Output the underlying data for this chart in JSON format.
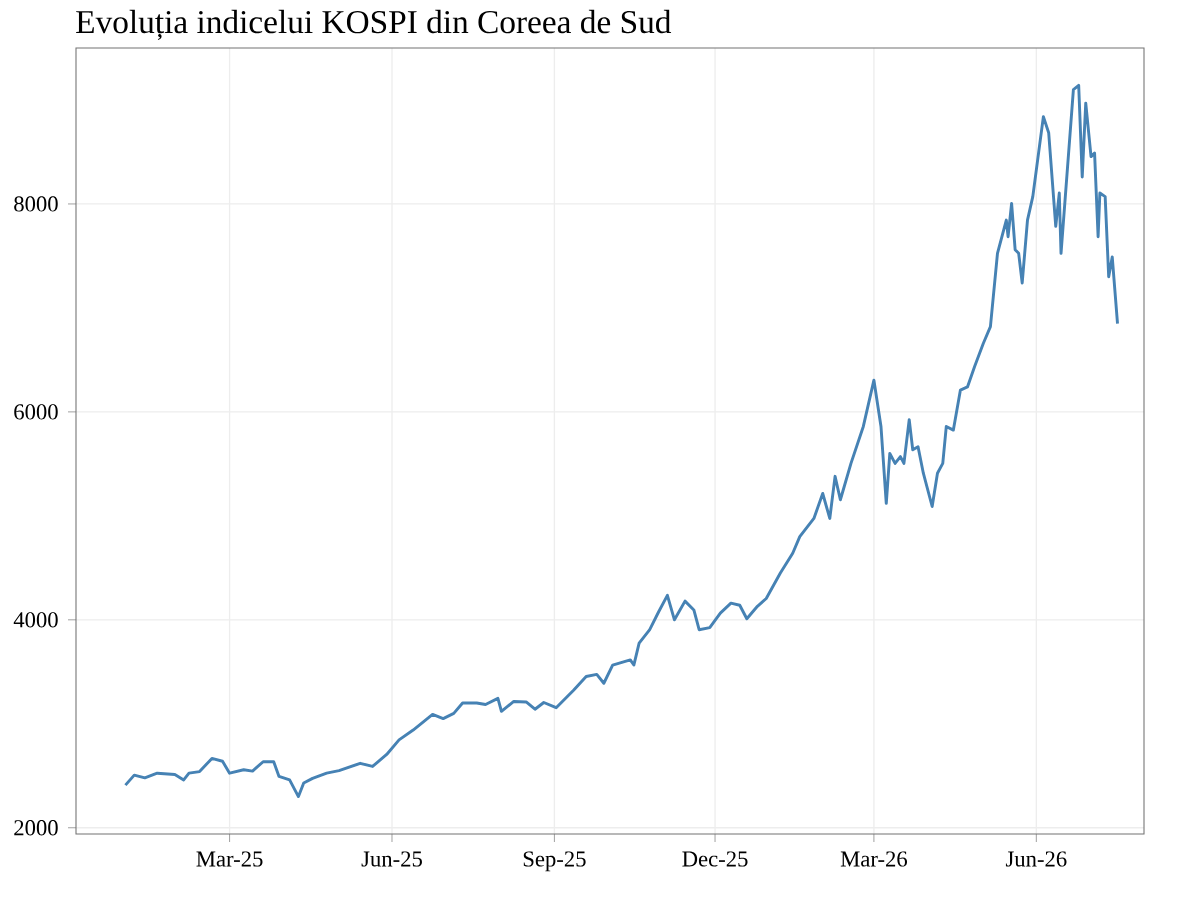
{
  "chart_data": {
    "type": "line",
    "title": "Evoluția indicelui KOSPI din Coreea de Sud",
    "x": [
      "2025-01-01",
      "2025-01-06",
      "2025-01-12",
      "2025-01-19",
      "2025-01-29",
      "2025-02-03",
      "2025-02-06",
      "2025-02-12",
      "2025-02-19",
      "2025-02-25",
      "2025-03-01",
      "2025-03-09",
      "2025-03-14",
      "2025-03-20",
      "2025-03-26",
      "2025-03-29",
      "2025-04-04",
      "2025-04-09",
      "2025-04-12",
      "2025-04-17",
      "2025-04-25",
      "2025-05-02",
      "2025-05-14",
      "2025-05-21",
      "2025-05-29",
      "2025-06-05",
      "2025-06-13",
      "2025-06-24",
      "2025-06-30",
      "2025-07-06",
      "2025-07-11",
      "2025-07-19",
      "2025-07-24",
      "2025-07-31",
      "2025-08-02",
      "2025-08-09",
      "2025-08-16",
      "2025-08-21",
      "2025-08-26",
      "2025-09-02",
      "2025-09-12",
      "2025-09-19",
      "2025-09-25",
      "2025-09-29",
      "2025-10-04",
      "2025-10-14",
      "2025-10-16",
      "2025-10-19",
      "2025-10-25",
      "2025-10-30",
      "2025-11-04",
      "2025-11-08",
      "2025-11-14",
      "2025-11-19",
      "2025-11-22",
      "2025-11-28",
      "2025-12-04",
      "2025-12-10",
      "2025-12-15",
      "2025-12-19",
      "2025-12-25",
      "2025-12-30",
      "2026-01-07",
      "2026-01-14",
      "2026-01-18",
      "2026-01-26",
      "2026-01-31",
      "2026-02-04",
      "2026-02-07",
      "2026-02-10",
      "2026-02-16",
      "2026-02-23",
      "2026-03-01",
      "2026-03-05",
      "2026-03-08",
      "2026-03-10",
      "2026-03-13",
      "2026-03-16",
      "2026-03-18",
      "2026-03-21",
      "2026-03-23",
      "2026-03-26",
      "2026-03-29",
      "2026-04-03",
      "2026-04-06",
      "2026-04-09",
      "2026-04-11",
      "2026-04-15",
      "2026-04-19",
      "2026-04-23",
      "2026-04-27",
      "2026-05-02",
      "2026-05-06",
      "2026-05-10",
      "2026-05-15",
      "2026-05-16",
      "2026-05-18",
      "2026-05-20",
      "2026-05-22",
      "2026-05-24",
      "2026-05-27",
      "2026-05-30",
      "2026-06-05",
      "2026-06-08",
      "2026-06-12",
      "2026-06-14",
      "2026-06-15",
      "2026-06-22",
      "2026-06-25",
      "2026-06-27",
      "2026-06-29",
      "2026-07-02",
      "2026-07-04",
      "2026-07-06",
      "2026-07-07",
      "2026-07-10",
      "2026-07-12",
      "2026-07-14",
      "2026-07-17"
    ],
    "series": [
      {
        "color": "#4682b4",
        "values": [
          2410,
          2506,
          2480,
          2525,
          2513,
          2460,
          2525,
          2540,
          2667,
          2640,
          2525,
          2558,
          2545,
          2635,
          2635,
          2494,
          2460,
          2300,
          2430,
          2475,
          2525,
          2550,
          2620,
          2590,
          2705,
          2845,
          2940,
          3090,
          3050,
          3100,
          3200,
          3200,
          3185,
          3245,
          3120,
          3215,
          3210,
          3140,
          3205,
          3155,
          3325,
          3455,
          3475,
          3390,
          3565,
          3615,
          3565,
          3775,
          3905,
          4075,
          4235,
          4000,
          4180,
          4095,
          3905,
          3925,
          4065,
          4160,
          4140,
          4010,
          4130,
          4205,
          4450,
          4640,
          4800,
          4975,
          5215,
          4975,
          5380,
          5155,
          5505,
          5860,
          6305,
          5860,
          5120,
          5600,
          5505,
          5570,
          5505,
          5925,
          5635,
          5665,
          5410,
          5090,
          5410,
          5505,
          5860,
          5825,
          6210,
          6240,
          6435,
          6660,
          6820,
          7525,
          7845,
          7685,
          8005,
          7560,
          7525,
          7240,
          7845,
          8070,
          8840,
          8685,
          7785,
          8105,
          7525,
          9100,
          9140,
          8260,
          8970,
          8455,
          8490,
          7685,
          8105,
          8070,
          7300,
          7490,
          6850
        ]
      }
    ],
    "xlim": [
      "2024-12-04",
      "2026-08-01"
    ],
    "xticks": [
      {
        "value": "2025-03-01",
        "label": "Mar-25"
      },
      {
        "value": "2025-06-01",
        "label": "Jun-25"
      },
      {
        "value": "2025-09-01",
        "label": "Sep-25"
      },
      {
        "value": "2025-12-01",
        "label": "Dec-25"
      },
      {
        "value": "2026-03-01",
        "label": "Mar-26"
      },
      {
        "value": "2026-06-01",
        "label": "Jun-26"
      }
    ],
    "ylim": [
      1940,
      9500
    ],
    "yticks": [
      2000,
      4000,
      6000,
      8000
    ],
    "grid": true,
    "line_style": "solid",
    "marker": "none"
  }
}
